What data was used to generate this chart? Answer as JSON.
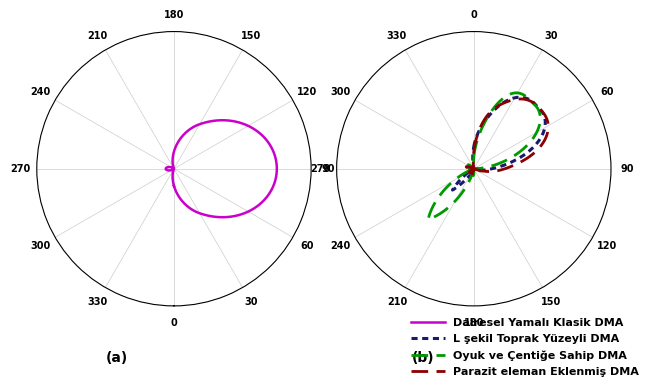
{
  "title_a": "(a)",
  "title_b": "(b)",
  "legend": [
    {
      "label": "Dairesel Yamalı Klasik DMA",
      "color": "#CC00CC",
      "linestyle": "solid",
      "linewidth": 1.8
    },
    {
      "label": "L şekil Toprak Yüzeyli DMA",
      "color": "#191970",
      "linestyle": "dotted",
      "linewidth": 2.2
    },
    {
      "label": "Oyuk ve Çentiğe Sahip DMA",
      "color": "#009900",
      "linestyle": "dashed",
      "linewidth": 2.0
    },
    {
      "label": "Parazit eleman Eklenmiş DMA",
      "color": "#8B0000",
      "linestyle": "dashed",
      "linewidth": 2.0
    }
  ],
  "background_color": "#FFFFFF",
  "ticks_a": [
    0,
    30,
    60,
    90,
    120,
    150,
    180,
    210,
    240,
    270,
    300,
    330
  ],
  "ticks_b": [
    0,
    30,
    60,
    90,
    120,
    150,
    180,
    210,
    240,
    270,
    300,
    330
  ]
}
